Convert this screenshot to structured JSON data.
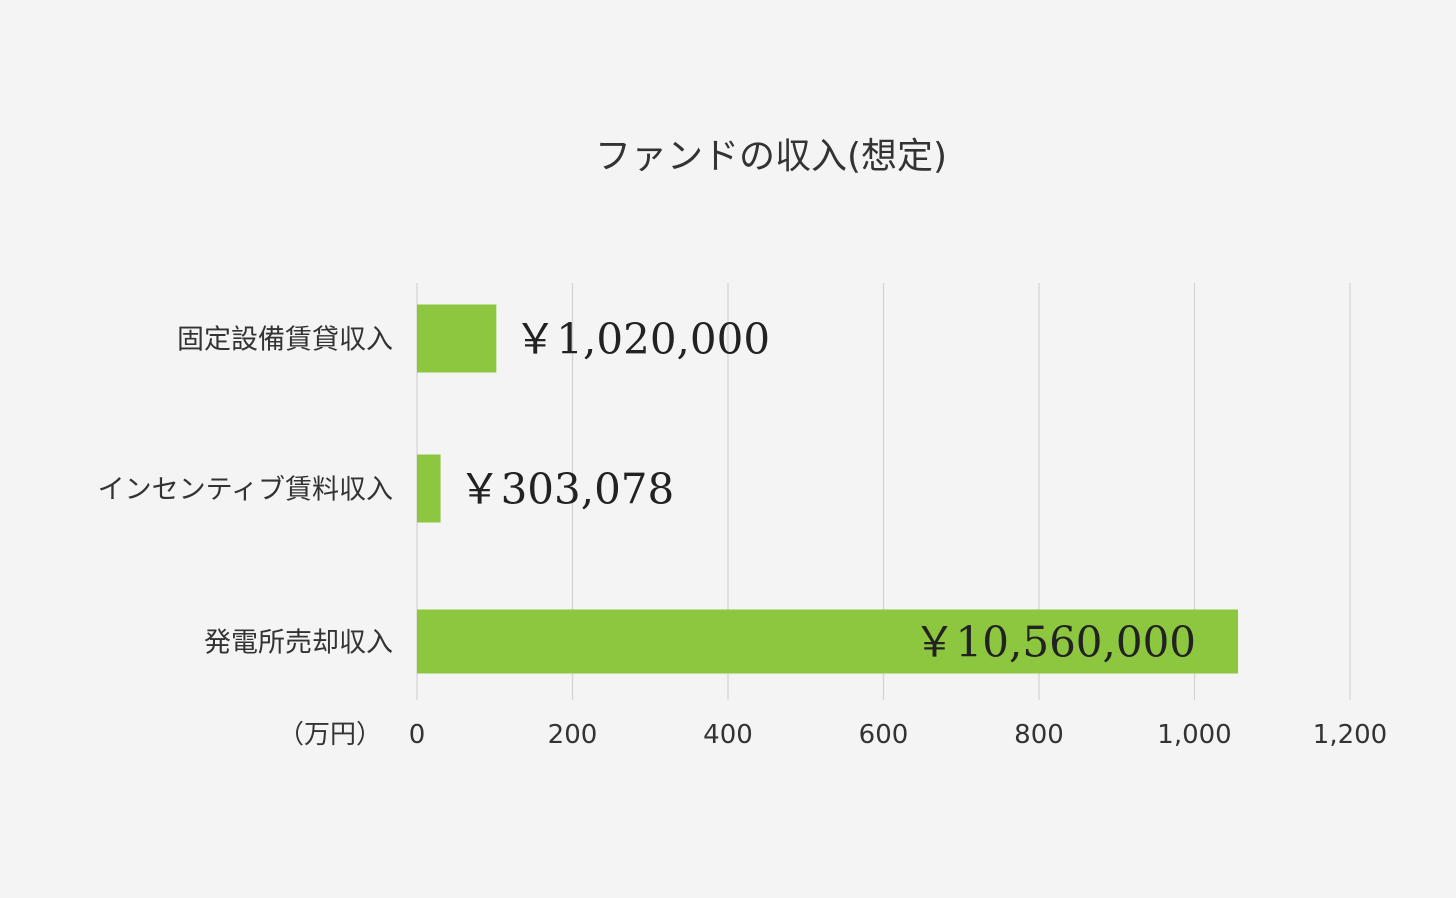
{
  "chart_data": {
    "type": "bar",
    "orientation": "horizontal",
    "title": "ファンドの収入(想定)",
    "unit_label": "（万円）",
    "categories": [
      "固定設備賃貸収入",
      "インセンティブ賃料収入",
      "発電所売却収入"
    ],
    "series": [
      {
        "values": [
          102,
          30.3078,
          1056
        ],
        "data_labels": [
          "￥1,020,000",
          "￥303,078",
          "￥10,560,000"
        ]
      }
    ],
    "xlim": [
      0,
      1200
    ],
    "x_ticks": [
      0,
      200,
      400,
      600,
      800,
      1000,
      1200
    ],
    "x_tick_labels": [
      "0",
      "200",
      "400",
      "600",
      "800",
      "1,000",
      "1,200"
    ],
    "grid": true,
    "legend": "none",
    "colors": {
      "bar": "#8dc63f",
      "grid": "#d2d2d2",
      "text": "#333333",
      "background": "#f4f4f4"
    }
  }
}
